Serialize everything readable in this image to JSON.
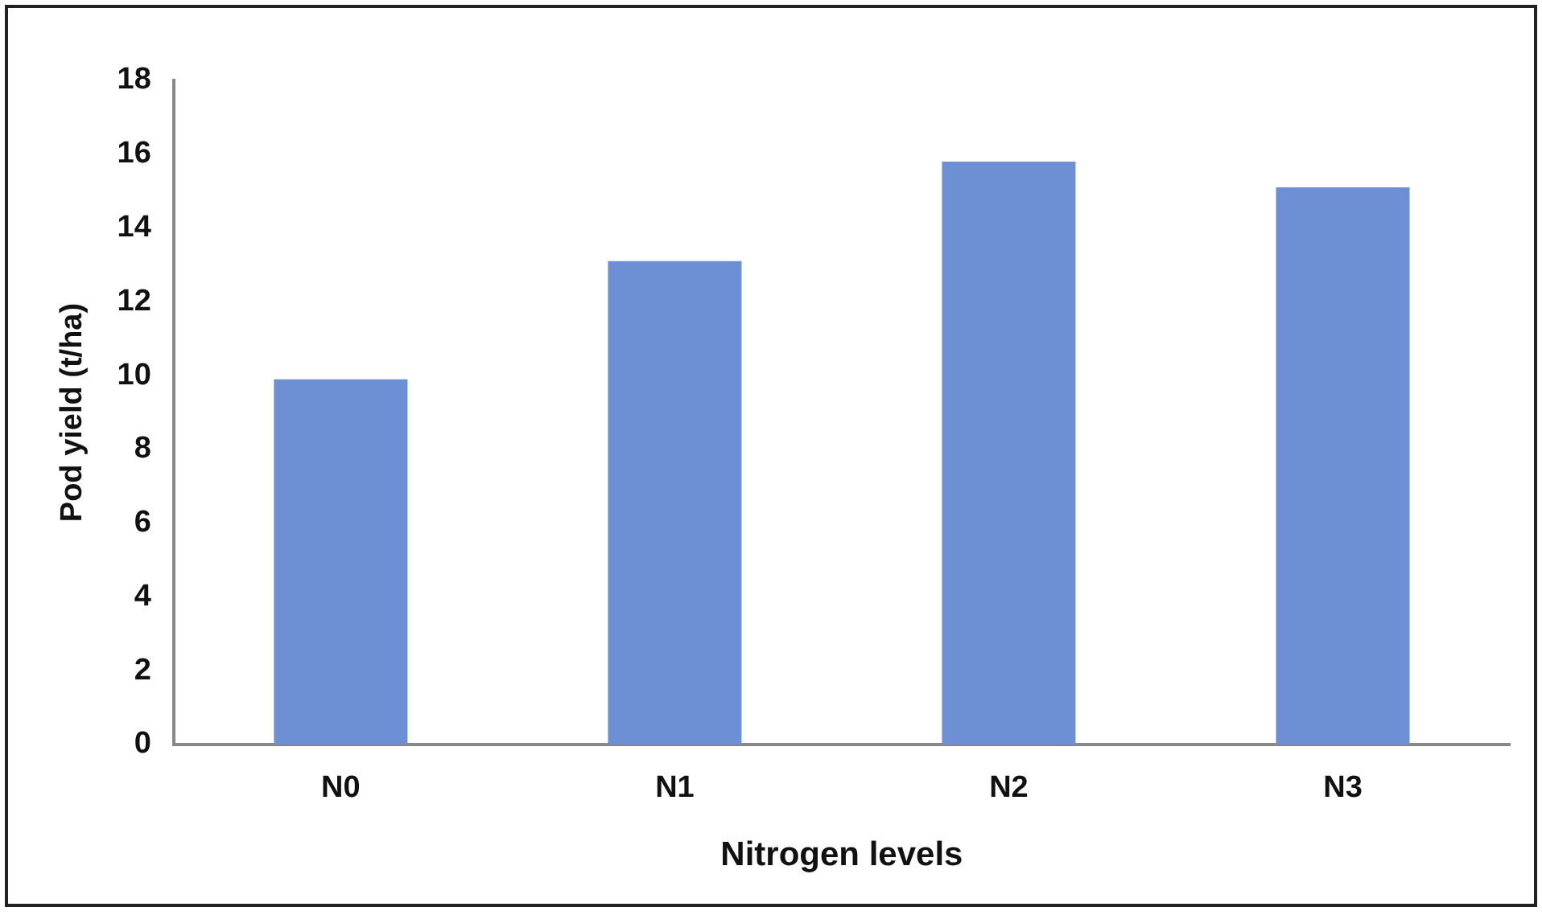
{
  "chart_data": {
    "type": "bar",
    "xlabel": "Nitrogen levels",
    "ylabel": "Pod yield (t/ha)",
    "categories": [
      "N0",
      "N1",
      "N2",
      "N3"
    ],
    "values": [
      9.9,
      13.1,
      15.8,
      15.1
    ],
    "color": "#6d8fd4",
    "ylim": [
      0,
      18
    ],
    "yticks": [
      0,
      2,
      4,
      6,
      8,
      10,
      12,
      14,
      16,
      18
    ],
    "grid": false,
    "legend": false
  }
}
